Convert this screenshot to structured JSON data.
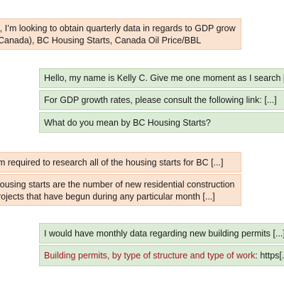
{
  "chat": {
    "messages": [
      {
        "role": "user",
        "lines": [
          "i, I’m looking to obtain quarterly data in regards to GDP grow",
          "Canada), BC Housing Starts, Canada Oil Price/BBL"
        ]
      },
      {
        "role": "agent",
        "text": "Hello, my name is Kelly C. Give me one moment as I search [...]"
      },
      {
        "role": "agent",
        "text": "For GDP growth rates, please consult the following link: [...]"
      },
      {
        "role": "agent",
        "text": "What do you mean by BC Housing Starts?"
      },
      {
        "role": "user",
        "lines": [
          "m required to research all of the housing starts for BC [...]"
        ]
      },
      {
        "role": "user",
        "lines": [
          "lousing starts are the number of new residential construction",
          "rojects that have begun during any particular month [...]"
        ]
      },
      {
        "role": "agent",
        "text": "I would have monthly data regarding new building permits [...]"
      },
      {
        "role": "agent",
        "link_title": "Building permits, by type of structure and type of work",
        "suffix": ": https[...]"
      }
    ]
  },
  "colors": {
    "user_bubble": "#fbe3d1",
    "agent_bubble": "#dcebd6",
    "link_title": "#a1191f"
  }
}
